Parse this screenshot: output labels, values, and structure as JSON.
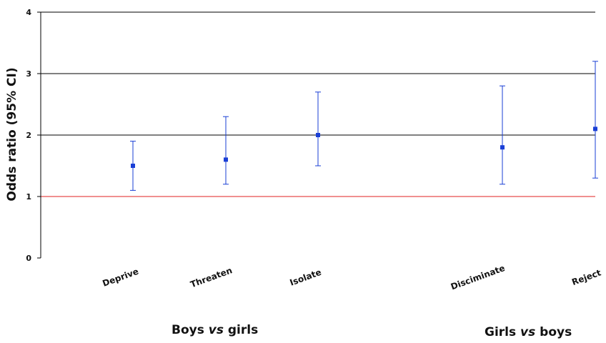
{
  "chart_data": {
    "type": "scatter",
    "ylabel": "Odds ratio (95% CI)",
    "ylim": [
      0,
      4
    ],
    "yticks": [
      0,
      1,
      2,
      3,
      4
    ],
    "gridlines_y": [
      2,
      3,
      4
    ],
    "reference_line": {
      "y": 1,
      "color": "#e02020"
    },
    "marker_color": "#1a3fd6",
    "categories": [
      "Deprive",
      "Threaten",
      "Isolate",
      "Disciminate",
      "Reject"
    ],
    "points": [
      {
        "category": "Deprive",
        "estimate": 1.5,
        "lower": 1.1,
        "upper": 1.9
      },
      {
        "category": "Threaten",
        "estimate": 1.6,
        "lower": 1.2,
        "upper": 2.3
      },
      {
        "category": "Isolate",
        "estimate": 2.0,
        "lower": 1.5,
        "upper": 2.7
      },
      {
        "category": "Disciminate",
        "estimate": 1.8,
        "lower": 1.2,
        "upper": 2.8
      },
      {
        "category": "Reject",
        "estimate": 2.1,
        "lower": 1.3,
        "upper": 3.2
      }
    ],
    "groups": [
      {
        "pre": "Boys ",
        "em": "vs",
        "post": " girls"
      },
      {
        "pre": "Girls ",
        "em": "vs",
        "post": " boys"
      }
    ]
  }
}
